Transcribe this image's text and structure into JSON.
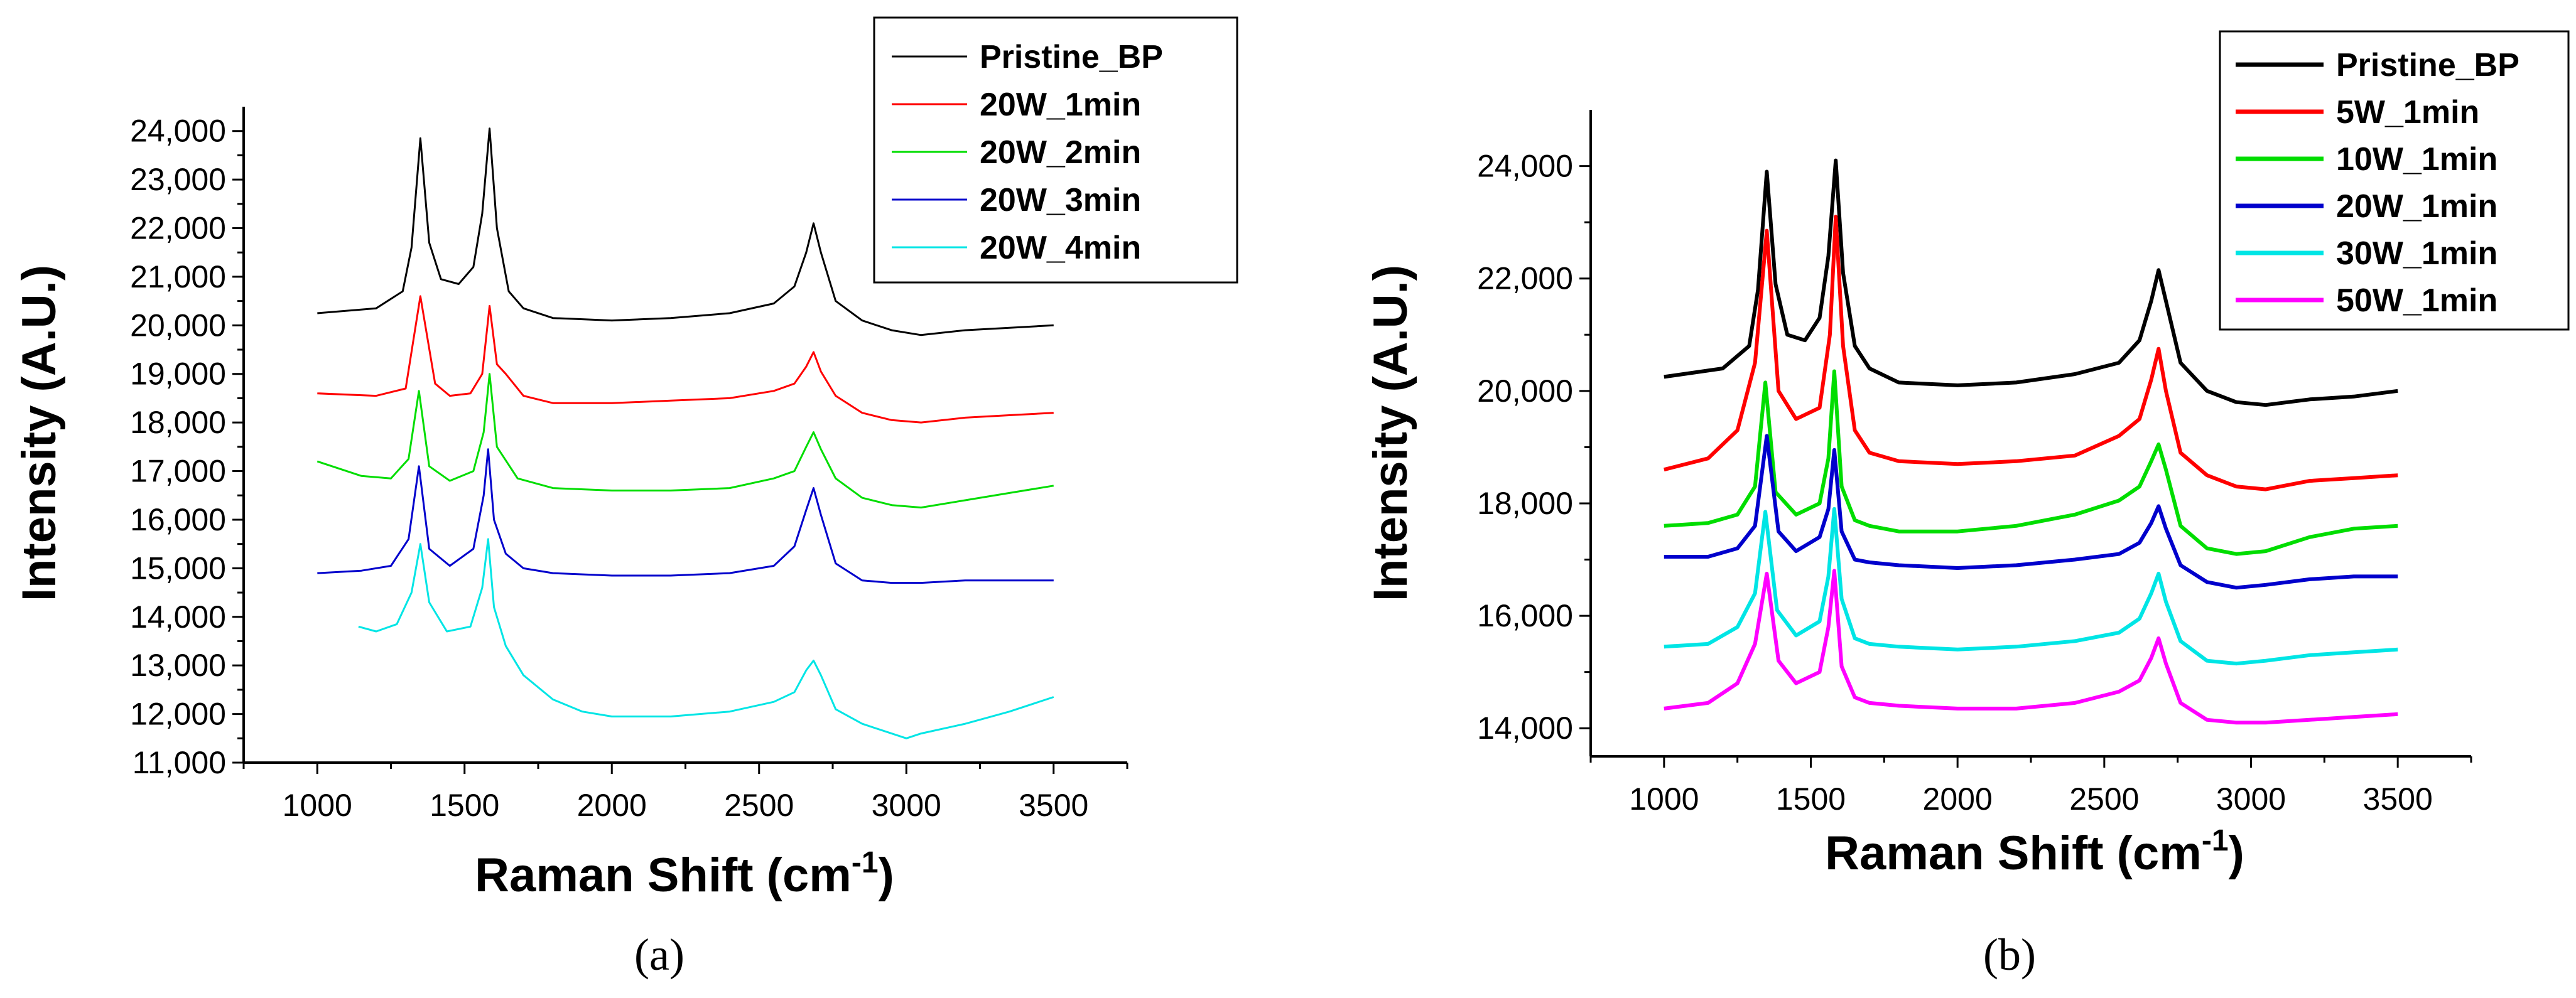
{
  "chart_data": [
    {
      "id": "a",
      "type": "line",
      "caption": "(a)",
      "xlabel": "Raman Shift (cm",
      "xlabel_sup": "-1",
      "xlabel_end": ")",
      "ylabel": "Intensity (A.U.)",
      "xlim": [
        750,
        3750
      ],
      "ylim": [
        11000,
        24500
      ],
      "xticks": [
        1000,
        1500,
        2000,
        2500,
        3000,
        3500
      ],
      "yticks": [
        11000,
        12000,
        13000,
        14000,
        15000,
        16000,
        17000,
        18000,
        19000,
        20000,
        21000,
        22000,
        23000,
        24000
      ],
      "ytick_labels": [
        "11,000",
        "12,000",
        "13,000",
        "14,000",
        "15,000",
        "16,000",
        "17,000",
        "18,000",
        "19,000",
        "20,000",
        "21,000",
        "22,000",
        "23,000",
        "24,000"
      ],
      "legend_position": "top-right",
      "series": [
        {
          "name": "Pristine_BP",
          "color": "#000000",
          "x": [
            1000,
            1200,
            1290,
            1320,
            1350,
            1380,
            1420,
            1480,
            1530,
            1560,
            1585,
            1610,
            1650,
            1700,
            1800,
            2000,
            2200,
            2400,
            2550,
            2620,
            2660,
            2685,
            2710,
            2760,
            2850,
            2950,
            3050,
            3200,
            3350,
            3500
          ],
          "y": [
            20250,
            20350,
            20700,
            21600,
            23850,
            21700,
            20950,
            20850,
            21200,
            22300,
            24050,
            22000,
            20700,
            20350,
            20150,
            20100,
            20150,
            20250,
            20450,
            20800,
            21500,
            22100,
            21500,
            20500,
            20100,
            19900,
            19800,
            19900,
            19950,
            20000
          ]
        },
        {
          "name": "20W_1min",
          "color": "#ff0000",
          "x": [
            1000,
            1200,
            1300,
            1350,
            1400,
            1450,
            1520,
            1560,
            1585,
            1610,
            1640,
            1700,
            1800,
            2000,
            2200,
            2400,
            2550,
            2620,
            2660,
            2685,
            2710,
            2760,
            2850,
            2950,
            3050,
            3200,
            3350,
            3500
          ],
          "y": [
            18600,
            18550,
            18700,
            20600,
            18800,
            18550,
            18600,
            19000,
            20400,
            19200,
            19000,
            18550,
            18400,
            18400,
            18450,
            18500,
            18650,
            18800,
            19150,
            19450,
            19050,
            18550,
            18200,
            18050,
            18000,
            18100,
            18150,
            18200
          ]
        },
        {
          "name": "20W_2min",
          "color": "#00dd00",
          "x": [
            1000,
            1150,
            1250,
            1310,
            1345,
            1380,
            1450,
            1530,
            1565,
            1585,
            1610,
            1680,
            1800,
            2000,
            2200,
            2400,
            2550,
            2620,
            2660,
            2685,
            2710,
            2760,
            2850,
            2950,
            3050,
            3200,
            3350,
            3500
          ],
          "y": [
            17200,
            16900,
            16850,
            17250,
            18650,
            17100,
            16800,
            17000,
            17800,
            19000,
            17500,
            16850,
            16650,
            16600,
            16600,
            16650,
            16850,
            17000,
            17500,
            17800,
            17450,
            16850,
            16450,
            16300,
            16250,
            16400,
            16550,
            16700
          ]
        },
        {
          "name": "20W_3min",
          "color": "#0000cc",
          "x": [
            1000,
            1150,
            1250,
            1310,
            1345,
            1380,
            1450,
            1530,
            1565,
            1580,
            1600,
            1640,
            1700,
            1800,
            2000,
            2200,
            2400,
            2550,
            2620,
            2660,
            2685,
            2710,
            2760,
            2850,
            2950,
            3050,
            3200,
            3350,
            3500
          ],
          "y": [
            14900,
            14950,
            15050,
            15600,
            17100,
            15400,
            15050,
            15400,
            16500,
            17450,
            16000,
            15300,
            15000,
            14900,
            14850,
            14850,
            14900,
            15050,
            15450,
            16200,
            16650,
            16100,
            15100,
            14750,
            14700,
            14700,
            14750,
            14750,
            14750
          ]
        },
        {
          "name": "20W_4min",
          "color": "#00e5e5",
          "x": [
            1140,
            1200,
            1270,
            1320,
            1350,
            1380,
            1440,
            1520,
            1560,
            1580,
            1600,
            1640,
            1700,
            1800,
            1900,
            2000,
            2200,
            2400,
            2550,
            2620,
            2660,
            2685,
            2710,
            2760,
            2850,
            2950,
            3000,
            3050,
            3200,
            3350,
            3500
          ],
          "y": [
            13800,
            13700,
            13850,
            14500,
            15500,
            14300,
            13700,
            13800,
            14600,
            15600,
            14200,
            13400,
            12800,
            12300,
            12050,
            11950,
            11950,
            12050,
            12250,
            12450,
            12900,
            13100,
            12800,
            12100,
            11800,
            11600,
            11500,
            11600,
            11800,
            12050,
            12350
          ]
        }
      ]
    },
    {
      "id": "b",
      "type": "line",
      "caption": "(b)",
      "xlabel": "Raman Shift (cm",
      "xlabel_sup": "-1",
      "xlabel_end": ")",
      "ylabel": "Intensity (A.U.)",
      "xlim": [
        750,
        3750
      ],
      "ylim": [
        13500,
        25000
      ],
      "xticks": [
        1000,
        1500,
        2000,
        2500,
        3000,
        3500
      ],
      "yticks": [
        14000,
        16000,
        18000,
        20000,
        22000,
        24000
      ],
      "ytick_labels": [
        "14,000",
        "16,000",
        "18,000",
        "20,000",
        "22,000",
        "24,000"
      ],
      "legend_position": "top-right",
      "series": [
        {
          "name": "Pristine_BP",
          "color": "#000000",
          "x": [
            1000,
            1200,
            1290,
            1320,
            1350,
            1380,
            1420,
            1480,
            1530,
            1560,
            1585,
            1610,
            1650,
            1700,
            1800,
            2000,
            2200,
            2400,
            2550,
            2620,
            2660,
            2685,
            2710,
            2760,
            2850,
            2950,
            3050,
            3200,
            3350,
            3500
          ],
          "y": [
            20250,
            20400,
            20800,
            21800,
            23900,
            21900,
            21000,
            20900,
            21300,
            22400,
            24100,
            22100,
            20800,
            20400,
            20150,
            20100,
            20150,
            20300,
            20500,
            20900,
            21600,
            22150,
            21600,
            20500,
            20000,
            19800,
            19750,
            19850,
            19900,
            20000
          ]
        },
        {
          "name": "5W_1min",
          "color": "#ff0000",
          "x": [
            1000,
            1150,
            1250,
            1310,
            1350,
            1390,
            1450,
            1530,
            1565,
            1585,
            1610,
            1650,
            1700,
            1800,
            2000,
            2200,
            2400,
            2550,
            2620,
            2660,
            2685,
            2710,
            2760,
            2850,
            2950,
            3050,
            3200,
            3350,
            3500
          ],
          "y": [
            18600,
            18800,
            19300,
            20500,
            22850,
            20000,
            19500,
            19700,
            21000,
            23100,
            20800,
            19300,
            18900,
            18750,
            18700,
            18750,
            18850,
            19200,
            19500,
            20200,
            20750,
            20000,
            18900,
            18500,
            18300,
            18250,
            18400,
            18450,
            18500
          ]
        },
        {
          "name": "10W_1min",
          "color": "#00dd00",
          "x": [
            1000,
            1150,
            1250,
            1310,
            1345,
            1380,
            1450,
            1530,
            1560,
            1580,
            1605,
            1650,
            1700,
            1800,
            2000,
            2200,
            2400,
            2550,
            2620,
            2660,
            2685,
            2710,
            2760,
            2850,
            2950,
            3050,
            3200,
            3350,
            3500
          ],
          "y": [
            17600,
            17650,
            17800,
            18300,
            20150,
            18200,
            17800,
            18000,
            18800,
            20350,
            18300,
            17700,
            17600,
            17500,
            17500,
            17600,
            17800,
            18050,
            18300,
            18750,
            19050,
            18600,
            17600,
            17200,
            17100,
            17150,
            17400,
            17550,
            17600
          ]
        },
        {
          "name": "20W_1min",
          "color": "#0000cc",
          "x": [
            1000,
            1150,
            1250,
            1310,
            1350,
            1390,
            1450,
            1530,
            1560,
            1580,
            1605,
            1650,
            1700,
            1800,
            2000,
            2200,
            2400,
            2550,
            2620,
            2660,
            2685,
            2710,
            2760,
            2850,
            2950,
            3050,
            3200,
            3350,
            3500
          ],
          "y": [
            17050,
            17050,
            17200,
            17600,
            19200,
            17500,
            17150,
            17400,
            17900,
            18950,
            17500,
            17000,
            16950,
            16900,
            16850,
            16900,
            17000,
            17100,
            17300,
            17650,
            17950,
            17550,
            16900,
            16600,
            16500,
            16550,
            16650,
            16700,
            16700
          ]
        },
        {
          "name": "30W_1min",
          "color": "#00e5e5",
          "x": [
            1000,
            1150,
            1250,
            1310,
            1345,
            1385,
            1450,
            1530,
            1560,
            1580,
            1605,
            1650,
            1700,
            1800,
            2000,
            2200,
            2400,
            2550,
            2620,
            2660,
            2685,
            2710,
            2760,
            2850,
            2950,
            3050,
            3200,
            3350,
            3500
          ],
          "y": [
            15450,
            15500,
            15800,
            16400,
            17850,
            16100,
            15650,
            15900,
            16700,
            17900,
            16300,
            15600,
            15500,
            15450,
            15400,
            15450,
            15550,
            15700,
            15950,
            16400,
            16750,
            16250,
            15550,
            15200,
            15150,
            15200,
            15300,
            15350,
            15400
          ]
        },
        {
          "name": "50W_1min",
          "color": "#ff00ff",
          "x": [
            1000,
            1150,
            1250,
            1310,
            1350,
            1390,
            1450,
            1530,
            1560,
            1580,
            1605,
            1650,
            1700,
            1800,
            2000,
            2200,
            2400,
            2550,
            2620,
            2660,
            2685,
            2710,
            2760,
            2850,
            2950,
            3050,
            3200,
            3350,
            3500
          ],
          "y": [
            14350,
            14450,
            14800,
            15500,
            16750,
            15200,
            14800,
            15000,
            15800,
            16800,
            15100,
            14550,
            14450,
            14400,
            14350,
            14350,
            14450,
            14650,
            14850,
            15250,
            15600,
            15150,
            14450,
            14150,
            14100,
            14100,
            14150,
            14200,
            14250
          ]
        }
      ]
    }
  ]
}
